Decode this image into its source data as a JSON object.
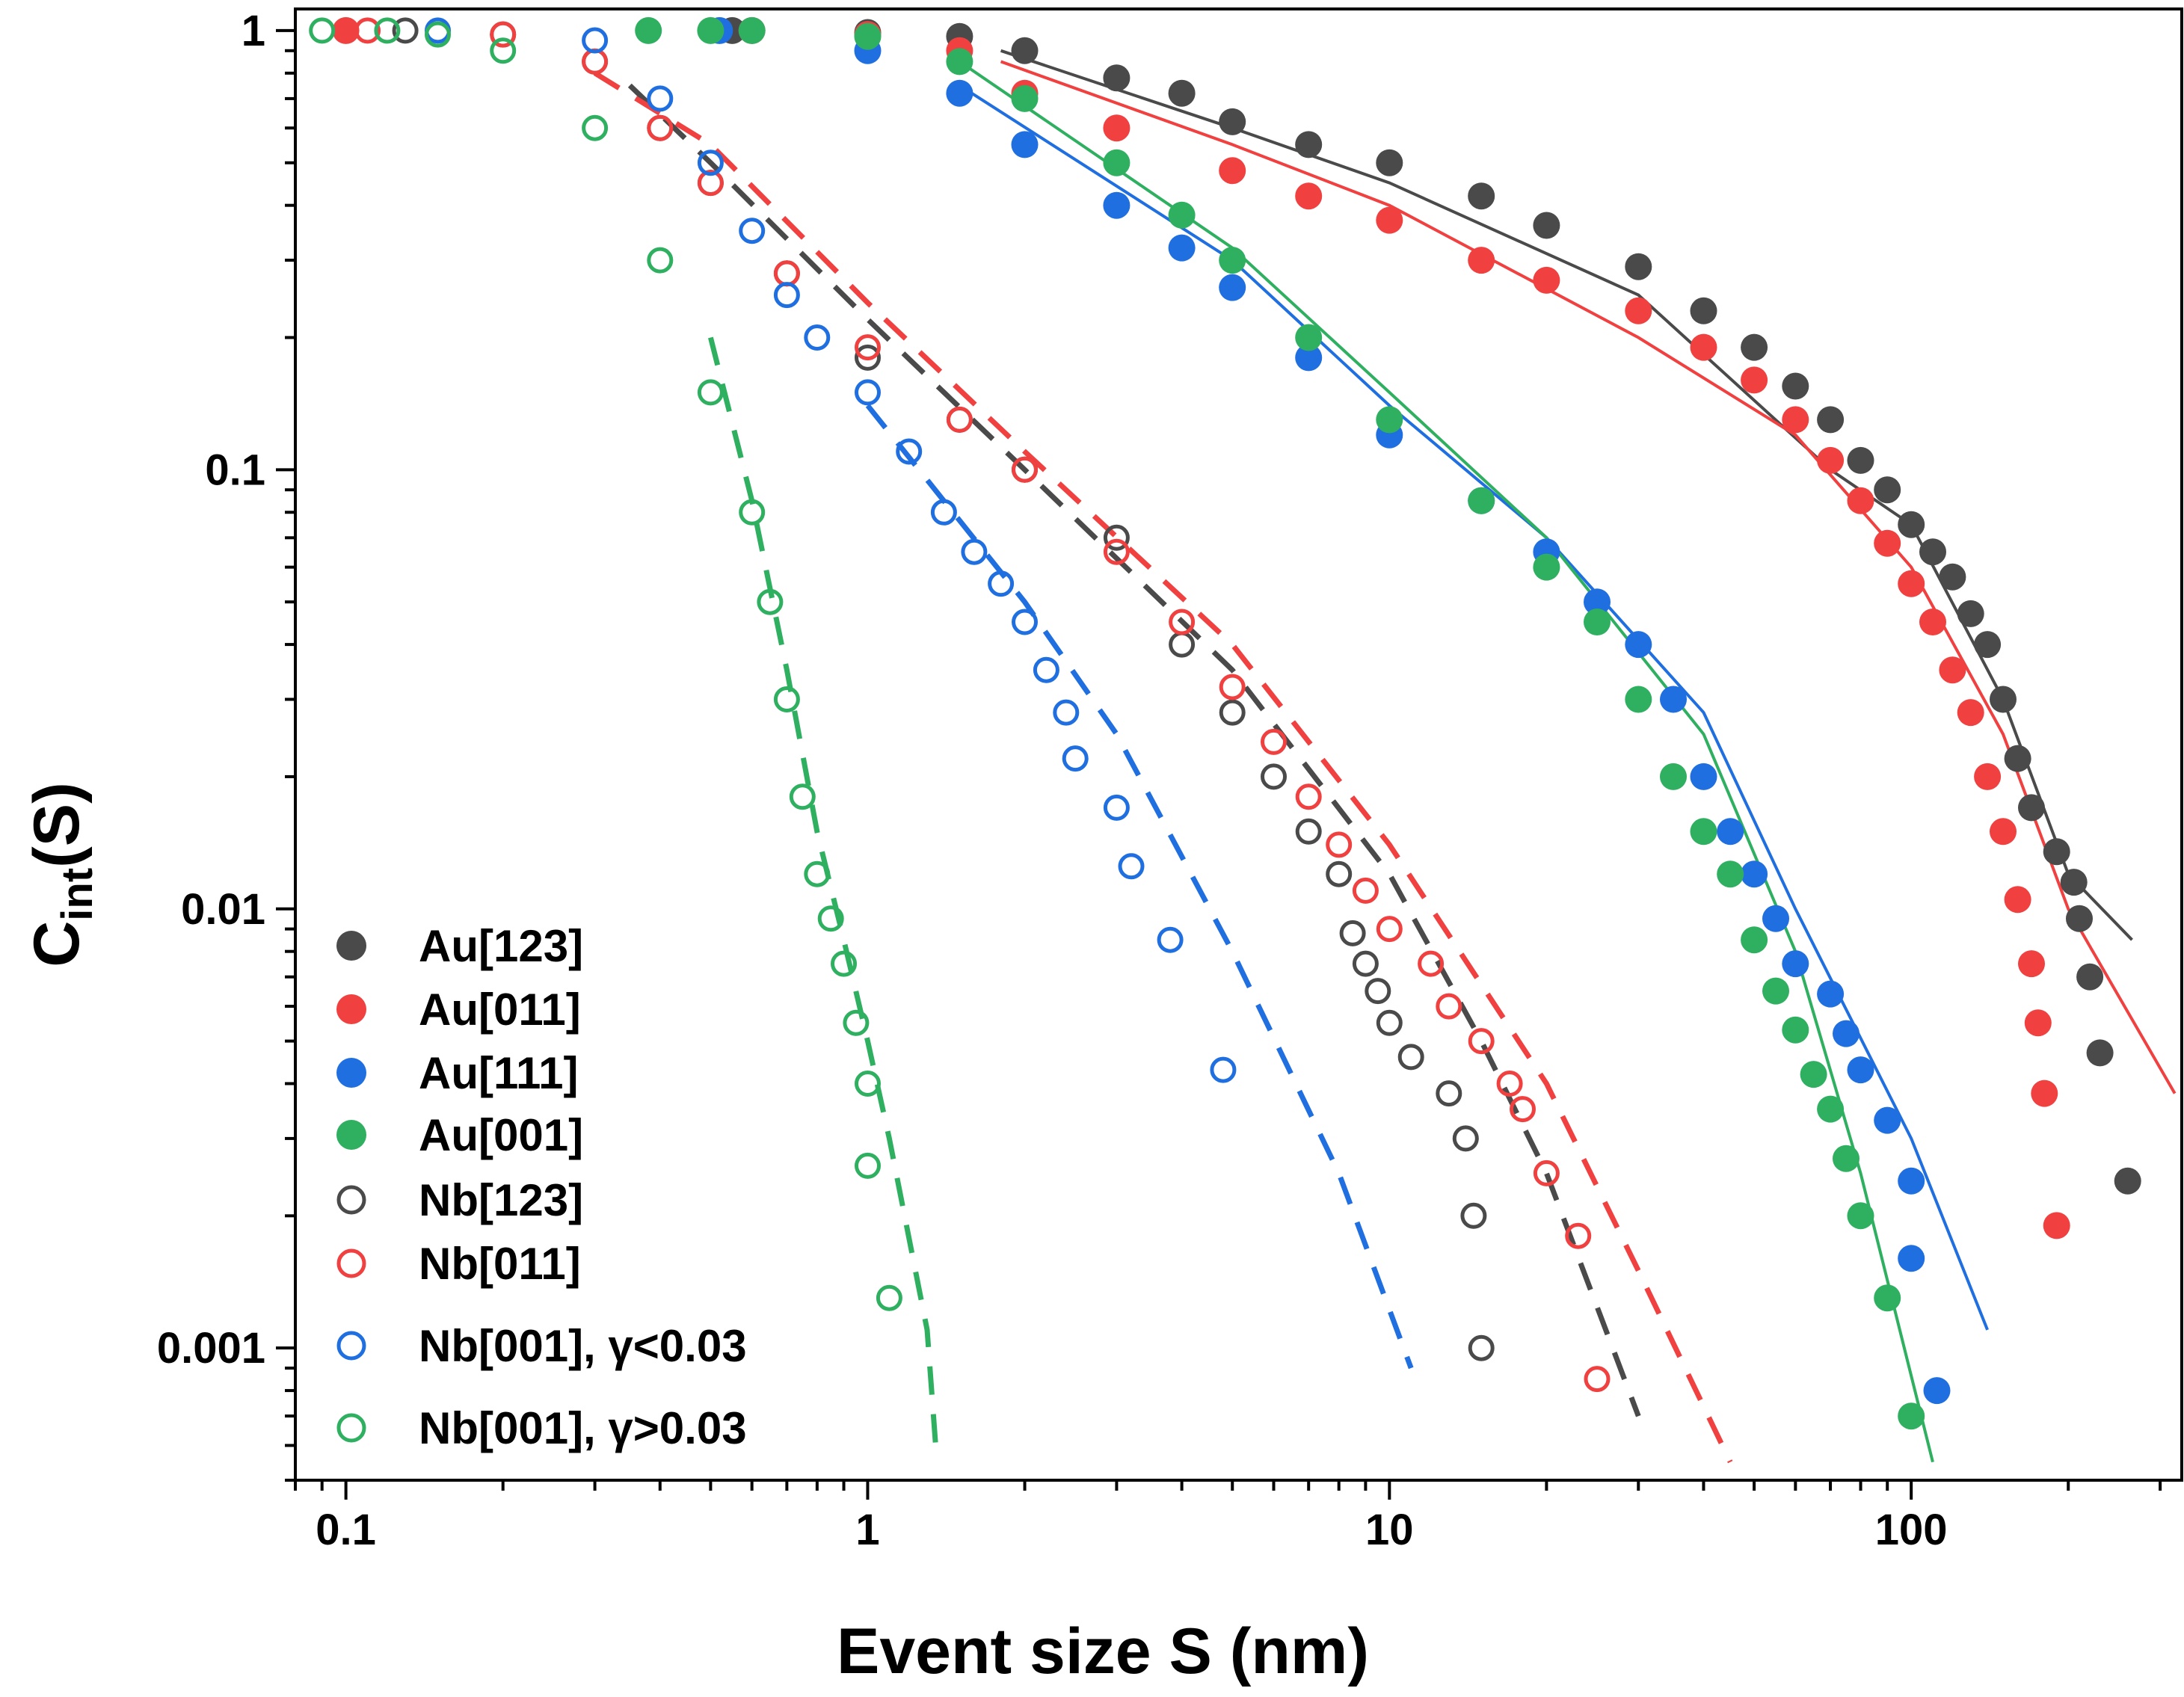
{
  "chart_data": {
    "type": "scatter",
    "title": "",
    "xlabel": "Event size S (nm)",
    "ylabel_main": "C",
    "ylabel_sub": "int",
    "ylabel_suffix": "(S)",
    "xscale": "log",
    "yscale": "log",
    "xlim": [
      0.08,
      330
    ],
    "ylim": [
      0.0005,
      1.12
    ],
    "x_ticks": [
      {
        "value": 0.1,
        "label": "0.1"
      },
      {
        "value": 1,
        "label": "1"
      },
      {
        "value": 10,
        "label": "10"
      },
      {
        "value": 100,
        "label": "100"
      }
    ],
    "y_ticks": [
      {
        "value": 1,
        "label": "1"
      },
      {
        "value": 0.1,
        "label": "0.1"
      },
      {
        "value": 0.01,
        "label": "0.01"
      },
      {
        "value": 0.001,
        "label": "0.001"
      }
    ],
    "grid": false,
    "legend_position": "bottom-left",
    "series": [
      {
        "name": "Au[123]",
        "marker": "filled",
        "color": "#4a4a4a",
        "points": [
          [
            0.55,
            1
          ],
          [
            1,
            0.99
          ],
          [
            1.5,
            0.97
          ],
          [
            2,
            0.9
          ],
          [
            3,
            0.78
          ],
          [
            4,
            0.72
          ],
          [
            5,
            0.62
          ],
          [
            7,
            0.55
          ],
          [
            10,
            0.5
          ],
          [
            15,
            0.42
          ],
          [
            20,
            0.36
          ],
          [
            30,
            0.29
          ],
          [
            40,
            0.23
          ],
          [
            50,
            0.19
          ],
          [
            60,
            0.155
          ],
          [
            70,
            0.13
          ],
          [
            80,
            0.105
          ],
          [
            90,
            0.09
          ],
          [
            100,
            0.075
          ],
          [
            110,
            0.065
          ],
          [
            120,
            0.057
          ],
          [
            130,
            0.047
          ],
          [
            140,
            0.04
          ],
          [
            150,
            0.03
          ],
          [
            160,
            0.022
          ],
          [
            170,
            0.017
          ],
          [
            190,
            0.0135
          ],
          [
            205,
            0.0115
          ],
          [
            210,
            0.0095
          ],
          [
            220,
            0.007
          ],
          [
            230,
            0.0047
          ],
          [
            260,
            0.0024
          ]
        ]
      },
      {
        "name": "Au[011]",
        "marker": "filled",
        "color": "#f04040",
        "points": [
          [
            0.1,
            1
          ],
          [
            0.6,
            1
          ],
          [
            1,
            0.98
          ],
          [
            1.5,
            0.9
          ],
          [
            2,
            0.72
          ],
          [
            3,
            0.6
          ],
          [
            5,
            0.48
          ],
          [
            7,
            0.42
          ],
          [
            10,
            0.37
          ],
          [
            15,
            0.3
          ],
          [
            20,
            0.27
          ],
          [
            30,
            0.23
          ],
          [
            40,
            0.19
          ],
          [
            50,
            0.16
          ],
          [
            60,
            0.13
          ],
          [
            70,
            0.105
          ],
          [
            80,
            0.085
          ],
          [
            90,
            0.068
          ],
          [
            100,
            0.055
          ],
          [
            110,
            0.045
          ],
          [
            120,
            0.035
          ],
          [
            130,
            0.028
          ],
          [
            140,
            0.02
          ],
          [
            150,
            0.015
          ],
          [
            160,
            0.0105
          ],
          [
            170,
            0.0075
          ],
          [
            175,
            0.0055
          ],
          [
            180,
            0.0038
          ],
          [
            190,
            0.0019
          ]
        ]
      },
      {
        "name": "Au[111]",
        "marker": "filled",
        "color": "#1f6fe0",
        "points": [
          [
            0.52,
            1
          ],
          [
            1,
            0.9
          ],
          [
            1.5,
            0.72
          ],
          [
            2,
            0.55
          ],
          [
            3,
            0.4
          ],
          [
            4,
            0.32
          ],
          [
            5,
            0.26
          ],
          [
            7,
            0.18
          ],
          [
            10,
            0.12
          ],
          [
            15,
            0.085
          ],
          [
            20,
            0.065
          ],
          [
            25,
            0.05
          ],
          [
            30,
            0.04
          ],
          [
            35,
            0.03
          ],
          [
            40,
            0.02
          ],
          [
            45,
            0.015
          ],
          [
            50,
            0.012
          ],
          [
            55,
            0.0095
          ],
          [
            60,
            0.0075
          ],
          [
            70,
            0.0064
          ],
          [
            75,
            0.0052
          ],
          [
            80,
            0.0043
          ],
          [
            90,
            0.0033
          ],
          [
            100,
            0.0024
          ],
          [
            100,
            0.0016
          ],
          [
            112,
            0.0008
          ]
        ]
      },
      {
        "name": "Au[001]",
        "marker": "filled",
        "color": "#2fb060",
        "points": [
          [
            0.38,
            1
          ],
          [
            0.5,
            1
          ],
          [
            0.6,
            1
          ],
          [
            1,
            0.97
          ],
          [
            1.5,
            0.85
          ],
          [
            2,
            0.7
          ],
          [
            3,
            0.5
          ],
          [
            4,
            0.38
          ],
          [
            5,
            0.3
          ],
          [
            7,
            0.2
          ],
          [
            10,
            0.13
          ],
          [
            15,
            0.085
          ],
          [
            20,
            0.06
          ],
          [
            25,
            0.045
          ],
          [
            30,
            0.03
          ],
          [
            35,
            0.02
          ],
          [
            40,
            0.015
          ],
          [
            45,
            0.012
          ],
          [
            50,
            0.0085
          ],
          [
            55,
            0.0065
          ],
          [
            60,
            0.0053
          ],
          [
            65,
            0.0042
          ],
          [
            70,
            0.0035
          ],
          [
            75,
            0.0027
          ],
          [
            80,
            0.002
          ],
          [
            90,
            0.0013
          ],
          [
            100,
            0.0007
          ]
        ]
      },
      {
        "name": "Nb[123]",
        "marker": "open",
        "color": "#4a4a4a",
        "points": [
          [
            0.13,
            1
          ],
          [
            0.2,
            0.98
          ],
          [
            0.3,
            0.85
          ],
          [
            0.4,
            0.6
          ],
          [
            0.5,
            0.45
          ],
          [
            0.7,
            0.28
          ],
          [
            1,
            0.18
          ],
          [
            1.5,
            0.13
          ],
          [
            2,
            0.1
          ],
          [
            3,
            0.07
          ],
          [
            4,
            0.04
          ],
          [
            5,
            0.028
          ],
          [
            6,
            0.02
          ],
          [
            7,
            0.015
          ],
          [
            8,
            0.012
          ],
          [
            8.5,
            0.0088
          ],
          [
            9,
            0.0075
          ],
          [
            9.5,
            0.0065
          ],
          [
            10,
            0.0055
          ],
          [
            11,
            0.0046
          ],
          [
            13,
            0.0038
          ],
          [
            14,
            0.003
          ],
          [
            14.5,
            0.002
          ],
          [
            15,
            0.001
          ]
        ]
      },
      {
        "name": "Nb[011]",
        "marker": "open",
        "color": "#f04040",
        "points": [
          [
            0.11,
            1
          ],
          [
            0.2,
            0.98
          ],
          [
            0.3,
            0.85
          ],
          [
            0.4,
            0.6
          ],
          [
            0.5,
            0.45
          ],
          [
            0.7,
            0.28
          ],
          [
            1,
            0.19
          ],
          [
            1.5,
            0.13
          ],
          [
            2,
            0.1
          ],
          [
            3,
            0.065
          ],
          [
            4,
            0.045
          ],
          [
            5,
            0.032
          ],
          [
            6,
            0.024
          ],
          [
            7,
            0.018
          ],
          [
            8,
            0.014
          ],
          [
            9,
            0.011
          ],
          [
            10,
            0.009
          ],
          [
            12,
            0.0075
          ],
          [
            13,
            0.006
          ],
          [
            15,
            0.005
          ],
          [
            17,
            0.004
          ],
          [
            18,
            0.0035
          ],
          [
            20,
            0.0025
          ],
          [
            23,
            0.0018
          ],
          [
            25,
            0.00085
          ]
        ]
      },
      {
        "name": "Nb[001], γ<0.03",
        "marker": "open",
        "color": "#1f6fe0",
        "points": [
          [
            0.15,
            1
          ],
          [
            0.3,
            0.95
          ],
          [
            0.4,
            0.7
          ],
          [
            0.5,
            0.5
          ],
          [
            0.6,
            0.35
          ],
          [
            0.7,
            0.25
          ],
          [
            0.8,
            0.2
          ],
          [
            1,
            0.15
          ],
          [
            1.2,
            0.11
          ],
          [
            1.4,
            0.08
          ],
          [
            1.6,
            0.065
          ],
          [
            1.8,
            0.055
          ],
          [
            2,
            0.045
          ],
          [
            2.2,
            0.035
          ],
          [
            2.4,
            0.028
          ],
          [
            2.5,
            0.022
          ],
          [
            3,
            0.017
          ],
          [
            3.2,
            0.0125
          ],
          [
            3.8,
            0.0085
          ],
          [
            4.8,
            0.0043
          ]
        ]
      },
      {
        "name": "Nb[001], γ>0.03",
        "marker": "open",
        "color": "#2fb060",
        "points": [
          [
            0.09,
            1
          ],
          [
            0.12,
            1
          ],
          [
            0.15,
            0.98
          ],
          [
            0.2,
            0.9
          ],
          [
            0.3,
            0.6
          ],
          [
            0.4,
            0.3
          ],
          [
            0.5,
            0.15
          ],
          [
            0.6,
            0.08
          ],
          [
            0.65,
            0.05
          ],
          [
            0.7,
            0.03
          ],
          [
            0.75,
            0.018
          ],
          [
            0.8,
            0.012
          ],
          [
            0.85,
            0.0095
          ],
          [
            0.9,
            0.0075
          ],
          [
            0.95,
            0.0055
          ],
          [
            1,
            0.004
          ],
          [
            1,
            0.0026
          ],
          [
            1.1,
            0.0013
          ]
        ]
      }
    ],
    "fit_curves": [
      {
        "color": "#4a4a4a",
        "style": "solid",
        "points": [
          [
            1.8,
            0.9
          ],
          [
            5,
            0.6
          ],
          [
            10,
            0.45
          ],
          [
            30,
            0.25
          ],
          [
            70,
            0.1
          ],
          [
            100,
            0.075
          ],
          [
            150,
            0.03
          ],
          [
            200,
            0.012
          ],
          [
            265,
            0.0085
          ]
        ]
      },
      {
        "color": "#f04040",
        "style": "solid",
        "points": [
          [
            1.8,
            0.85
          ],
          [
            5,
            0.55
          ],
          [
            10,
            0.4
          ],
          [
            30,
            0.2
          ],
          [
            60,
            0.12
          ],
          [
            100,
            0.06
          ],
          [
            150,
            0.025
          ],
          [
            200,
            0.01
          ],
          [
            320,
            0.0038
          ]
        ]
      },
      {
        "color": "#1f6fe0",
        "style": "solid",
        "points": [
          [
            1.5,
            0.75
          ],
          [
            5,
            0.3
          ],
          [
            10,
            0.14
          ],
          [
            20,
            0.07
          ],
          [
            40,
            0.028
          ],
          [
            60,
            0.01
          ],
          [
            100,
            0.003
          ],
          [
            140,
            0.0011
          ]
        ]
      },
      {
        "color": "#2fb060",
        "style": "solid",
        "points": [
          [
            1.5,
            0.85
          ],
          [
            5,
            0.32
          ],
          [
            10,
            0.15
          ],
          [
            20,
            0.07
          ],
          [
            40,
            0.025
          ],
          [
            60,
            0.008
          ],
          [
            80,
            0.0025
          ],
          [
            110,
            0.00055
          ]
        ]
      },
      {
        "color": "#4a4a4a",
        "style": "dashed",
        "points": [
          [
            0.35,
            0.75
          ],
          [
            0.5,
            0.5
          ],
          [
            1,
            0.22
          ],
          [
            2,
            0.1
          ],
          [
            5,
            0.035
          ],
          [
            10,
            0.012
          ],
          [
            15,
            0.005
          ],
          [
            20,
            0.0025
          ],
          [
            30,
            0.0007
          ]
        ]
      },
      {
        "color": "#f04040",
        "style": "dashed",
        "points": [
          [
            0.3,
            0.8
          ],
          [
            0.5,
            0.55
          ],
          [
            1,
            0.24
          ],
          [
            2,
            0.11
          ],
          [
            5,
            0.04
          ],
          [
            10,
            0.014
          ],
          [
            20,
            0.004
          ],
          [
            30,
            0.0015
          ],
          [
            45,
            0.00055
          ]
        ]
      },
      {
        "color": "#1f6fe0",
        "style": "dashed",
        "points": [
          [
            1,
            0.14
          ],
          [
            2,
            0.05
          ],
          [
            3,
            0.025
          ],
          [
            5,
            0.008
          ],
          [
            8,
            0.0025
          ],
          [
            11,
            0.0009
          ]
        ]
      },
      {
        "color": "#2fb060",
        "style": "dashed",
        "points": [
          [
            0.5,
            0.2
          ],
          [
            0.6,
            0.085
          ],
          [
            0.7,
            0.035
          ],
          [
            0.8,
            0.015
          ],
          [
            0.9,
            0.0085
          ],
          [
            1,
            0.005
          ],
          [
            1.1,
            0.003
          ],
          [
            1.3,
            0.0011
          ],
          [
            1.35,
            0.0006
          ]
        ]
      }
    ]
  }
}
